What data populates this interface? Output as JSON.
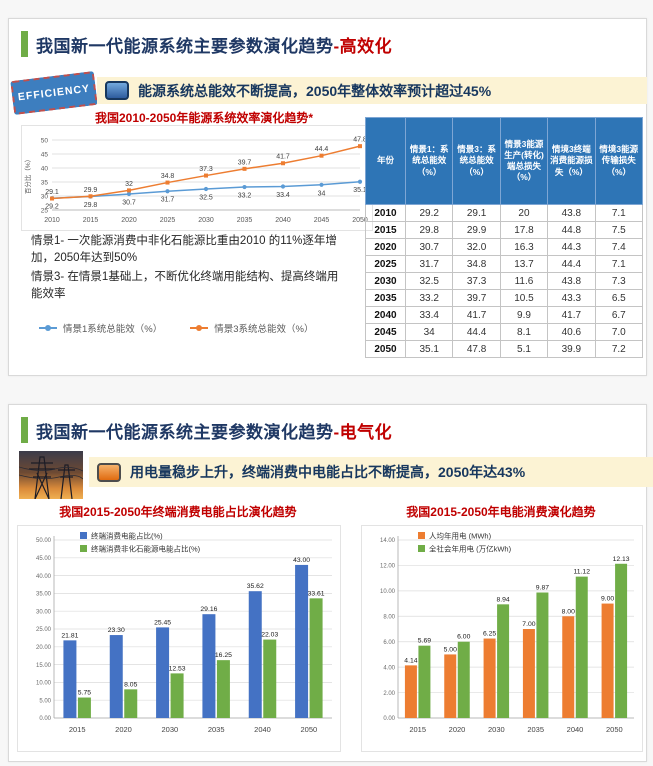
{
  "colors": {
    "title_navy": "#1F3864",
    "accent_red": "#C00000",
    "accent_green": "#6FAC46",
    "banner_bg": "#FCF3D4",
    "table_header_blue": "#2E75B6",
    "series_blue_light": "#5B9BD5",
    "series_blue": "#4472C4",
    "series_orange": "#ED7D31",
    "series_green": "#70AD47"
  },
  "slide1": {
    "title": "我国新一代能源系统主要参数演化趋势",
    "title_accent": "-高效化",
    "stamp": "EFFICIENCY",
    "banner": "能源系统总能效不断提高，2050年整体效率预计超过45%",
    "note1": "情景1- 一次能源消费中非化石能源比重由2010 的11%逐年增加，2050年达到50%",
    "note2": "情景3- 在情景1基础上，不断优化终端用能结构、提高终端用能效率",
    "table": {
      "headers": [
        "年份",
        "情景1：系统总能效（%）",
        "情景3：系统总能效（%）",
        "情景3能源生产(转化)端总损失（%）",
        "情境3终端消费能源损失（%）",
        "情境3能源传输损失（%）"
      ],
      "rows": [
        [
          "2010",
          "29.2",
          "29.1",
          "20",
          "43.8",
          "7.1"
        ],
        [
          "2015",
          "29.8",
          "29.9",
          "17.8",
          "44.8",
          "7.5"
        ],
        [
          "2020",
          "30.7",
          "32.0",
          "16.3",
          "44.3",
          "7.4"
        ],
        [
          "2025",
          "31.7",
          "34.8",
          "13.7",
          "44.4",
          "7.1"
        ],
        [
          "2030",
          "32.5",
          "37.3",
          "11.6",
          "43.8",
          "7.3"
        ],
        [
          "2035",
          "33.2",
          "39.7",
          "10.5",
          "43.3",
          "6.5"
        ],
        [
          "2040",
          "33.4",
          "41.7",
          "9.9",
          "41.7",
          "6.7"
        ],
        [
          "2045",
          "34",
          "44.4",
          "8.1",
          "40.6",
          "7.0"
        ],
        [
          "2050",
          "35.1",
          "47.8",
          "5.1",
          "39.9",
          "7.2"
        ]
      ]
    }
  },
  "slide2": {
    "title": "我国新一代能源系统主要参数演化趋势",
    "title_accent": "-电气化",
    "banner": "用电量稳步上升，终端消费中电能占比不断提高，2050年达43%"
  },
  "chart_data": [
    {
      "id": "efficiency-line",
      "type": "line",
      "title": "我国2010-2050年能源系统效率演化趋势*",
      "categories": [
        "2010",
        "2015",
        "2020",
        "2025",
        "2030",
        "2035",
        "2040",
        "2045",
        "2050"
      ],
      "series": [
        {
          "name": "情景1系统总能效（%）",
          "color": "#5B9BD5",
          "values": [
            "29.2",
            "29.8",
            "30.7",
            "31.7",
            "32.5",
            "33.2",
            "33.4",
            "34",
            "35.1"
          ]
        },
        {
          "name": "情景3系统总能效（%）",
          "color": "#ED7D31",
          "values": [
            "29.1",
            "29.9",
            "32",
            "34.8",
            "37.3",
            "39.7",
            "41.7",
            "44.4",
            "47.8"
          ]
        }
      ],
      "ylabel": "百分比（%）",
      "ylim": [
        25,
        50
      ],
      "ystep": 5,
      "grid": true,
      "legend_position": "bottom"
    },
    {
      "id": "terminal-electricity-share",
      "type": "bar",
      "title": "我国2015-2050年终端消费电能占比演化趋势",
      "categories": [
        "2015",
        "2020",
        "2030",
        "2035",
        "2040",
        "2050"
      ],
      "series": [
        {
          "name": "终端消费电能占比(%)",
          "color": "#4472C4",
          "values": [
            "21.81",
            "23.30",
            "25.45",
            "29.16",
            "35.62",
            "43.00"
          ]
        },
        {
          "name": "终端消费非化石能源电能占比(%)",
          "color": "#70AD47",
          "values": [
            "5.75",
            "8.05",
            "12.53",
            "16.25",
            "22.03",
            "33.61"
          ]
        }
      ],
      "ylim": [
        0,
        50
      ],
      "ystep": 5,
      "ytick_format": "2dp",
      "grid": true,
      "legend_position": "top-left-inside"
    },
    {
      "id": "electricity-consumption",
      "type": "bar",
      "title": "我国2015-2050年电能消费演化趋势",
      "categories": [
        "2015",
        "2020",
        "2030",
        "2035",
        "2040",
        "2050"
      ],
      "series": [
        {
          "name": "人均年用电 (MWh)",
          "color": "#ED7D31",
          "values": [
            "4.14",
            "5.00",
            "6.25",
            "7.00",
            "8.00",
            "9.00"
          ]
        },
        {
          "name": "全社会年用电 (万亿kWh)",
          "color": "#70AD47",
          "values": [
            "5.69",
            "6.00",
            "8.94",
            "9.87",
            "11.12",
            "12.13"
          ]
        }
      ],
      "ylim": [
        0,
        14
      ],
      "ystep": 2,
      "ytick_format": "2dp",
      "grid": true,
      "legend_position": "top-left-inside"
    }
  ]
}
